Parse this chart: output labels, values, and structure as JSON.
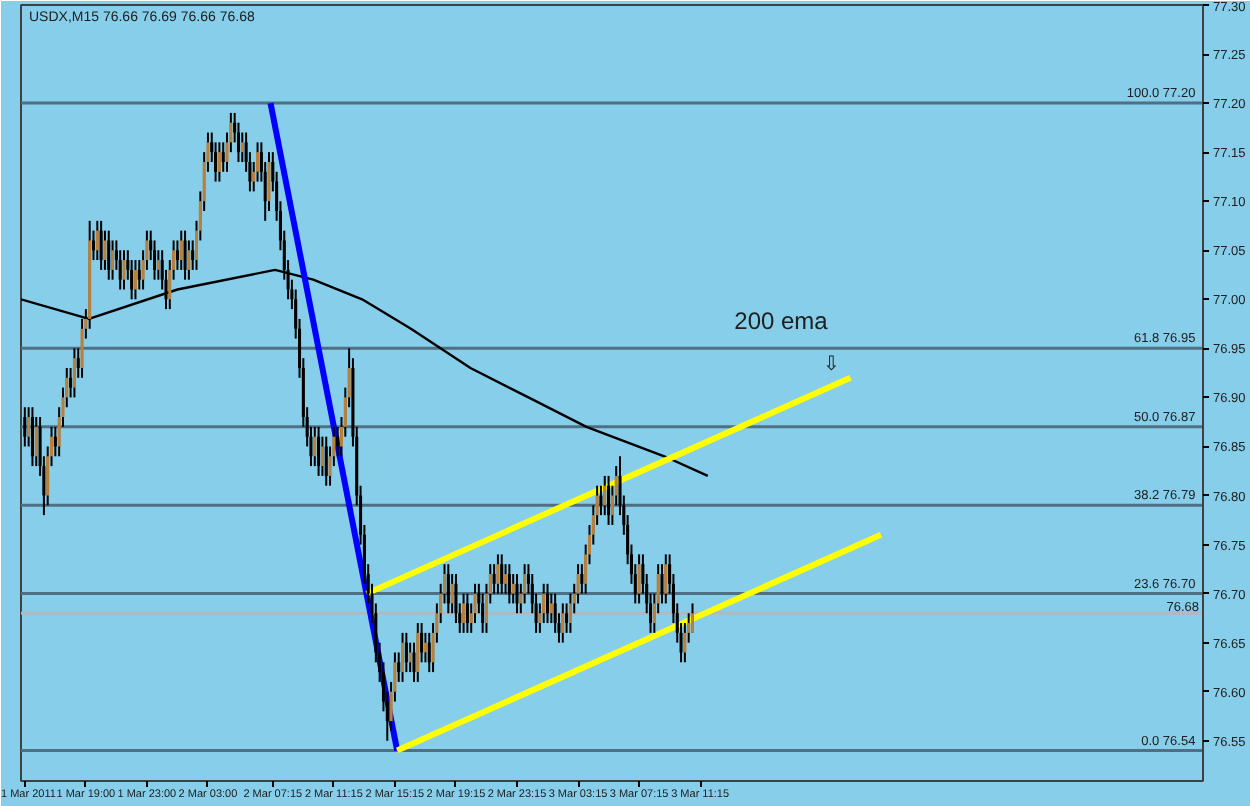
{
  "chart_data": {
    "type": "candlestick",
    "title": "USDX,M15 76.66 76.69 76.66 76.68",
    "x": [
      "2011-03-01T15:00",
      "2011-03-01T15:15",
      "2011-03-01T15:30",
      "2011-03-01T15:45",
      "2011-03-01T16:00",
      "2011-03-01T16:15",
      "2011-03-01T16:30",
      "2011-03-01T16:45",
      "2011-03-01T17:00",
      "2011-03-01T17:15",
      "2011-03-01T17:30",
      "2011-03-01T17:45",
      "2011-03-01T18:00",
      "2011-03-01T18:15",
      "2011-03-01T18:30",
      "2011-03-01T18:45",
      "2011-03-01T19:00",
      "2011-03-01T19:15",
      "2011-03-01T19:30",
      "2011-03-01T19:45",
      "2011-03-01T20:00",
      "2011-03-01T20:15",
      "2011-03-01T20:30",
      "2011-03-01T20:45",
      "2011-03-01T21:00",
      "2011-03-01T21:15",
      "2011-03-01T21:30",
      "2011-03-01T21:45",
      "2011-03-01T22:00",
      "2011-03-01T22:15",
      "2011-03-01T22:30",
      "2011-03-01T22:45",
      "2011-03-01T23:00",
      "2011-03-01T23:15",
      "2011-03-01T23:30",
      "2011-03-01T23:45",
      "2011-03-02T00:00",
      "2011-03-02T00:15",
      "2011-03-02T00:30",
      "2011-03-02T00:45",
      "2011-03-02T01:00",
      "2011-03-02T01:15",
      "2011-03-02T01:30",
      "2011-03-02T01:45",
      "2011-03-02T02:00",
      "2011-03-02T02:15",
      "2011-03-02T02:30",
      "2011-03-02T02:45",
      "2011-03-02T03:00",
      "2011-03-02T03:15",
      "2011-03-02T03:30",
      "2011-03-02T03:45",
      "2011-03-02T04:00",
      "2011-03-02T04:15",
      "2011-03-02T04:30",
      "2011-03-02T04:45",
      "2011-03-02T05:00",
      "2011-03-02T05:15",
      "2011-03-02T05:30",
      "2011-03-02T05:45",
      "2011-03-02T06:00",
      "2011-03-02T06:15",
      "2011-03-02T06:30",
      "2011-03-02T06:45",
      "2011-03-02T07:00",
      "2011-03-02T07:15",
      "2011-03-02T07:30",
      "2011-03-02T07:45",
      "2011-03-02T08:00",
      "2011-03-02T08:15",
      "2011-03-02T08:30",
      "2011-03-02T08:45",
      "2011-03-02T09:00",
      "2011-03-02T09:15",
      "2011-03-02T09:30",
      "2011-03-02T09:45",
      "2011-03-02T10:00",
      "2011-03-02T10:15",
      "2011-03-02T10:30",
      "2011-03-02T10:45",
      "2011-03-02T11:00",
      "2011-03-02T11:15",
      "2011-03-02T11:30",
      "2011-03-02T11:45",
      "2011-03-02T12:00",
      "2011-03-02T12:15",
      "2011-03-02T12:30",
      "2011-03-02T12:45",
      "2011-03-02T13:00",
      "2011-03-02T13:15",
      "2011-03-02T13:30",
      "2011-03-02T13:45",
      "2011-03-02T14:00",
      "2011-03-02T14:15",
      "2011-03-02T14:30",
      "2011-03-02T14:45",
      "2011-03-02T15:00",
      "2011-03-02T15:15",
      "2011-03-02T15:30",
      "2011-03-02T15:45",
      "2011-03-02T16:00",
      "2011-03-02T16:15",
      "2011-03-02T16:30",
      "2011-03-02T16:45",
      "2011-03-02T17:00",
      "2011-03-02T17:15",
      "2011-03-02T17:30",
      "2011-03-02T17:45",
      "2011-03-02T18:00",
      "2011-03-02T18:15",
      "2011-03-02T18:30",
      "2011-03-02T18:45",
      "2011-03-02T19:00",
      "2011-03-02T19:15",
      "2011-03-02T19:30",
      "2011-03-02T19:45",
      "2011-03-02T20:00",
      "2011-03-02T20:15",
      "2011-03-02T20:30",
      "2011-03-02T20:45",
      "2011-03-02T21:00",
      "2011-03-02T21:15",
      "2011-03-02T21:30",
      "2011-03-02T21:45",
      "2011-03-02T22:00",
      "2011-03-02T22:15",
      "2011-03-02T22:30",
      "2011-03-02T22:45",
      "2011-03-02T23:00",
      "2011-03-02T23:15",
      "2011-03-02T23:30",
      "2011-03-02T23:45",
      "2011-03-03T00:00",
      "2011-03-03T00:15",
      "2011-03-03T00:30",
      "2011-03-03T00:45",
      "2011-03-03T01:00",
      "2011-03-03T01:15",
      "2011-03-03T01:30",
      "2011-03-03T01:45",
      "2011-03-03T02:00",
      "2011-03-03T02:15",
      "2011-03-03T02:30",
      "2011-03-03T02:45",
      "2011-03-03T03:00",
      "2011-03-03T03:15",
      "2011-03-03T03:30",
      "2011-03-03T03:45",
      "2011-03-03T04:00",
      "2011-03-03T04:15",
      "2011-03-03T04:30",
      "2011-03-03T04:45",
      "2011-03-03T05:00",
      "2011-03-03T05:15",
      "2011-03-03T05:30",
      "2011-03-03T05:45",
      "2011-03-03T06:00",
      "2011-03-03T06:15",
      "2011-03-03T06:30",
      "2011-03-03T06:45",
      "2011-03-03T07:00",
      "2011-03-03T07:15",
      "2011-03-03T07:30",
      "2011-03-03T07:45",
      "2011-03-03T08:00",
      "2011-03-03T08:15",
      "2011-03-03T08:30",
      "2011-03-03T08:45",
      "2011-03-03T09:00",
      "2011-03-03T09:15",
      "2011-03-03T09:30",
      "2011-03-03T09:45",
      "2011-03-03T10:00",
      "2011-03-03T10:15",
      "2011-03-03T10:30",
      "2011-03-03T10:45"
    ],
    "ohlc": [
      [
        76.88,
        76.89,
        76.85,
        76.86
      ],
      [
        76.86,
        76.89,
        76.85,
        76.88
      ],
      [
        76.88,
        76.89,
        76.83,
        76.84
      ],
      [
        76.84,
        76.88,
        76.83,
        76.87
      ],
      [
        76.87,
        76.88,
        76.82,
        76.83
      ],
      [
        76.83,
        76.84,
        76.78,
        76.8
      ],
      [
        76.8,
        76.85,
        76.79,
        76.84
      ],
      [
        76.84,
        76.87,
        76.83,
        76.86
      ],
      [
        76.86,
        76.87,
        76.84,
        76.85
      ],
      [
        76.85,
        76.89,
        76.84,
        76.88
      ],
      [
        76.88,
        76.91,
        76.87,
        76.9
      ],
      [
        76.9,
        76.93,
        76.89,
        76.92
      ],
      [
        76.92,
        76.93,
        76.9,
        76.91
      ],
      [
        76.91,
        76.95,
        76.9,
        76.94
      ],
      [
        76.94,
        76.95,
        76.92,
        76.93
      ],
      [
        76.93,
        76.98,
        76.92,
        76.97
      ],
      [
        76.97,
        76.99,
        76.96,
        76.98
      ],
      [
        76.98,
        77.08,
        76.97,
        77.06
      ],
      [
        77.06,
        77.07,
        77.04,
        77.05
      ],
      [
        77.05,
        77.08,
        77.04,
        77.07
      ],
      [
        77.07,
        77.08,
        77.03,
        77.04
      ],
      [
        77.04,
        77.07,
        77.03,
        77.06
      ],
      [
        77.06,
        77.07,
        77.02,
        77.03
      ],
      [
        77.03,
        77.06,
        77.02,
        77.05
      ],
      [
        77.05,
        77.06,
        77.03,
        77.04
      ],
      [
        77.04,
        77.05,
        77.01,
        77.02
      ],
      [
        77.02,
        77.05,
        77.01,
        77.04
      ],
      [
        77.04,
        77.05,
        77.02,
        77.03
      ],
      [
        77.03,
        77.04,
        77.0,
        77.01
      ],
      [
        77.01,
        77.04,
        77.0,
        77.03
      ],
      [
        77.03,
        77.04,
        77.01,
        77.02
      ],
      [
        77.02,
        77.05,
        77.01,
        77.04
      ],
      [
        77.04,
        77.07,
        77.03,
        77.06
      ],
      [
        77.06,
        77.07,
        77.04,
        77.05
      ],
      [
        77.05,
        77.06,
        77.02,
        77.03
      ],
      [
        77.03,
        77.05,
        77.02,
        77.04
      ],
      [
        77.04,
        77.05,
        77.01,
        77.02
      ],
      [
        77.02,
        77.03,
        76.99,
        77.0
      ],
      [
        77.0,
        77.04,
        76.99,
        77.03
      ],
      [
        77.03,
        77.06,
        77.02,
        77.05
      ],
      [
        77.05,
        77.06,
        77.03,
        77.04
      ],
      [
        77.04,
        77.07,
        77.03,
        77.06
      ],
      [
        77.06,
        77.07,
        77.02,
        77.03
      ],
      [
        77.03,
        77.06,
        77.02,
        77.05
      ],
      [
        77.05,
        77.06,
        77.03,
        77.04
      ],
      [
        77.04,
        77.08,
        77.03,
        77.07
      ],
      [
        77.07,
        77.11,
        77.06,
        77.1
      ],
      [
        77.1,
        77.15,
        77.09,
        77.14
      ],
      [
        77.14,
        77.17,
        77.13,
        77.16
      ],
      [
        77.16,
        77.17,
        77.14,
        77.15
      ],
      [
        77.15,
        77.16,
        77.12,
        77.13
      ],
      [
        77.13,
        77.16,
        77.12,
        77.15
      ],
      [
        77.15,
        77.16,
        77.13,
        77.14
      ],
      [
        77.14,
        77.17,
        77.13,
        77.16
      ],
      [
        77.16,
        77.19,
        77.15,
        77.18
      ],
      [
        77.18,
        77.19,
        77.16,
        77.17
      ],
      [
        77.17,
        77.18,
        77.14,
        77.15
      ],
      [
        77.15,
        77.17,
        77.14,
        77.16
      ],
      [
        77.16,
        77.17,
        77.13,
        77.14
      ],
      [
        77.14,
        77.15,
        77.11,
        77.12
      ],
      [
        77.12,
        77.14,
        77.11,
        77.13
      ],
      [
        77.13,
        77.16,
        77.12,
        77.15
      ],
      [
        77.15,
        77.16,
        77.12,
        77.13
      ],
      [
        77.13,
        77.14,
        77.08,
        77.1
      ],
      [
        77.1,
        77.15,
        77.09,
        77.14
      ],
      [
        77.14,
        77.15,
        77.11,
        77.12
      ],
      [
        77.12,
        77.13,
        77.08,
        77.09
      ],
      [
        77.09,
        77.1,
        77.05,
        77.06
      ],
      [
        77.06,
        77.07,
        77.02,
        77.03
      ],
      [
        77.03,
        77.04,
        77.0,
        77.01
      ],
      [
        77.01,
        77.02,
        76.99,
        77.0
      ],
      [
        77.0,
        77.01,
        76.96,
        76.97
      ],
      [
        76.97,
        76.98,
        76.92,
        76.93
      ],
      [
        76.93,
        76.94,
        76.87,
        76.88
      ],
      [
        76.88,
        76.89,
        76.85,
        76.86
      ],
      [
        76.86,
        76.87,
        76.83,
        76.84
      ],
      [
        76.84,
        76.87,
        76.83,
        76.86
      ],
      [
        76.86,
        76.87,
        76.82,
        76.83
      ],
      [
        76.83,
        76.86,
        76.82,
        76.85
      ],
      [
        76.85,
        76.86,
        76.81,
        76.82
      ],
      [
        76.82,
        76.85,
        76.81,
        76.84
      ],
      [
        76.84,
        76.87,
        76.83,
        76.86
      ],
      [
        76.86,
        76.87,
        76.84,
        76.85
      ],
      [
        76.85,
        76.88,
        76.84,
        76.87
      ],
      [
        76.87,
        76.91,
        76.86,
        76.9
      ],
      [
        76.9,
        76.95,
        76.89,
        76.93
      ],
      [
        76.93,
        76.94,
        76.85,
        76.86
      ],
      [
        76.86,
        76.87,
        76.79,
        76.8
      ],
      [
        76.8,
        76.81,
        76.75,
        76.76
      ],
      [
        76.76,
        76.77,
        76.71,
        76.72
      ],
      [
        76.72,
        76.73,
        76.69,
        76.7
      ],
      [
        76.7,
        76.71,
        76.67,
        76.68
      ],
      [
        76.68,
        76.69,
        76.63,
        76.64
      ],
      [
        76.64,
        76.65,
        76.61,
        76.62
      ],
      [
        76.62,
        76.63,
        76.58,
        76.59
      ],
      [
        76.59,
        76.6,
        76.55,
        76.57
      ],
      [
        76.57,
        76.61,
        76.56,
        76.6
      ],
      [
        76.6,
        76.64,
        76.59,
        76.63
      ],
      [
        76.63,
        76.64,
        76.61,
        76.62
      ],
      [
        76.62,
        76.66,
        76.61,
        76.65
      ],
      [
        76.65,
        76.66,
        76.62,
        76.63
      ],
      [
        76.63,
        76.65,
        76.62,
        76.64
      ],
      [
        76.64,
        76.65,
        76.61,
        76.62
      ],
      [
        76.62,
        76.67,
        76.61,
        76.66
      ],
      [
        76.66,
        76.67,
        76.63,
        76.64
      ],
      [
        76.64,
        76.66,
        76.63,
        76.65
      ],
      [
        76.65,
        76.66,
        76.62,
        76.63
      ],
      [
        76.63,
        76.67,
        76.62,
        76.66
      ],
      [
        76.66,
        76.69,
        76.65,
        76.68
      ],
      [
        76.68,
        76.71,
        76.67,
        76.7
      ],
      [
        76.7,
        76.73,
        76.69,
        76.72
      ],
      [
        76.72,
        76.73,
        76.68,
        76.69
      ],
      [
        76.69,
        76.72,
        76.68,
        76.71
      ],
      [
        76.71,
        76.72,
        76.67,
        76.68
      ],
      [
        76.68,
        76.69,
        76.66,
        76.67
      ],
      [
        76.67,
        76.7,
        76.66,
        76.69
      ],
      [
        76.69,
        76.7,
        76.66,
        76.67
      ],
      [
        76.67,
        76.69,
        76.66,
        76.68
      ],
      [
        76.68,
        76.71,
        76.67,
        76.7
      ],
      [
        76.7,
        76.71,
        76.68,
        76.69
      ],
      [
        76.69,
        76.7,
        76.66,
        76.67
      ],
      [
        76.67,
        76.71,
        76.66,
        76.7
      ],
      [
        76.7,
        76.73,
        76.69,
        76.72
      ],
      [
        76.72,
        76.73,
        76.7,
        76.71
      ],
      [
        76.71,
        76.74,
        76.7,
        76.73
      ],
      [
        76.73,
        76.74,
        76.7,
        76.71
      ],
      [
        76.71,
        76.73,
        76.7,
        76.72
      ],
      [
        76.72,
        76.73,
        76.69,
        76.7
      ],
      [
        76.7,
        76.72,
        76.69,
        76.71
      ],
      [
        76.71,
        76.72,
        76.68,
        76.69
      ],
      [
        76.69,
        76.71,
        76.68,
        76.7
      ],
      [
        76.7,
        76.73,
        76.69,
        76.72
      ],
      [
        76.72,
        76.73,
        76.7,
        76.71
      ],
      [
        76.71,
        76.72,
        76.68,
        76.69
      ],
      [
        76.69,
        76.7,
        76.66,
        76.67
      ],
      [
        76.67,
        76.69,
        76.66,
        76.68
      ],
      [
        76.68,
        76.71,
        76.67,
        76.7
      ],
      [
        76.7,
        76.71,
        76.67,
        76.68
      ],
      [
        76.68,
        76.7,
        76.67,
        76.69
      ],
      [
        76.69,
        76.7,
        76.66,
        76.67
      ],
      [
        76.67,
        76.68,
        76.65,
        76.66
      ],
      [
        76.66,
        76.69,
        76.65,
        76.68
      ],
      [
        76.68,
        76.69,
        76.66,
        76.67
      ],
      [
        76.67,
        76.7,
        76.66,
        76.69
      ],
      [
        76.69,
        76.71,
        76.68,
        76.7
      ],
      [
        76.7,
        76.73,
        76.69,
        76.72
      ],
      [
        76.72,
        76.73,
        76.7,
        76.71
      ],
      [
        76.71,
        76.75,
        76.7,
        76.74
      ],
      [
        76.74,
        76.77,
        76.73,
        76.76
      ],
      [
        76.76,
        76.79,
        76.75,
        76.78
      ],
      [
        76.78,
        76.81,
        76.77,
        76.8
      ],
      [
        76.8,
        76.81,
        76.78,
        76.79
      ],
      [
        76.79,
        76.82,
        76.78,
        76.81
      ],
      [
        76.81,
        76.82,
        76.77,
        76.78
      ],
      [
        76.78,
        76.81,
        76.77,
        76.8
      ],
      [
        76.8,
        76.83,
        76.79,
        76.82
      ],
      [
        76.82,
        76.84,
        76.78,
        76.79
      ],
      [
        76.79,
        76.8,
        76.76,
        76.77
      ],
      [
        76.77,
        76.78,
        76.73,
        76.74
      ],
      [
        76.74,
        76.75,
        76.71,
        76.72
      ],
      [
        76.72,
        76.73,
        76.69,
        76.7
      ],
      [
        76.7,
        76.74,
        76.69,
        76.73
      ],
      [
        76.73,
        76.74,
        76.7,
        76.71
      ],
      [
        76.71,
        76.72,
        76.68,
        76.69
      ],
      [
        76.69,
        76.7,
        76.66,
        76.67
      ],
      [
        76.67,
        76.7,
        76.66,
        76.69
      ],
      [
        76.69,
        76.73,
        76.68,
        76.72
      ],
      [
        76.72,
        76.73,
        76.69,
        76.7
      ],
      [
        76.7,
        76.74,
        76.69,
        76.73
      ],
      [
        76.73,
        76.74,
        76.7,
        76.71
      ],
      [
        76.71,
        76.72,
        76.67,
        76.68
      ],
      [
        76.68,
        76.69,
        76.65,
        76.66
      ],
      [
        76.66,
        76.67,
        76.63,
        76.64
      ],
      [
        76.64,
        76.67,
        76.63,
        76.66
      ],
      [
        76.66,
        76.68,
        76.65,
        76.67
      ],
      [
        76.66,
        76.69,
        76.66,
        76.68
      ]
    ],
    "series": [
      {
        "type": "line",
        "color": "#000000",
        "x": [
          "2011-03-01T14:45",
          "2011-03-01T19:12",
          "2011-03-02T01:00",
          "2011-03-02T07:24",
          "2011-03-02T09:54",
          "2011-03-02T13:06",
          "2011-03-02T16:18",
          "2011-03-02T20:12",
          "2011-03-03T00:00",
          "2011-03-03T03:48",
          "2011-03-03T08:54",
          "2011-03-03T11:45"
        ],
        "values": [
          77.0,
          76.98,
          77.01,
          77.03,
          77.02,
          77.0,
          76.97,
          76.93,
          76.9,
          76.87,
          76.84,
          76.82
        ]
      },
      {
        "type": "line",
        "color": "#0000ff",
        "x": [
          "2011-03-02T07:06",
          "2011-03-02T15:24"
        ],
        "values": [
          77.2,
          76.54
        ]
      },
      {
        "type": "line",
        "color": "#ffff00",
        "x": [
          "2011-03-02T13:24",
          "2011-03-03T21:06"
        ],
        "values": [
          76.7,
          76.92
        ]
      },
      {
        "type": "line",
        "color": "#ffff00",
        "x": [
          "2011-03-02T15:24",
          "2011-03-03T23:06"
        ],
        "values": [
          76.54,
          76.76
        ]
      }
    ],
    "xlim": [
      "2011-03-01T14:45",
      "2011-03-04T20:12"
    ],
    "ylim": [
      76.509,
      77.3
    ],
    "xticks": [
      {
        "value": "2011-03-01T15:00",
        "label": "1 Mar 2011"
      },
      {
        "value": "2011-03-01T19:00",
        "label": "1 Mar 19:00"
      },
      {
        "value": "2011-03-01T23:00",
        "label": "1 Mar 23:00"
      },
      {
        "value": "2011-03-02T03:00",
        "label": "2 Mar 03:00"
      },
      {
        "value": "2011-03-02T07:15",
        "label": "2 Mar 07:15"
      },
      {
        "value": "2011-03-02T11:15",
        "label": "2 Mar 11:15"
      },
      {
        "value": "2011-03-02T15:15",
        "label": "2 Mar 15:15"
      },
      {
        "value": "2011-03-02T19:15",
        "label": "2 Mar 19:15"
      },
      {
        "value": "2011-03-02T23:15",
        "label": "2 Mar 23:15"
      },
      {
        "value": "2011-03-03T03:15",
        "label": "3 Mar 03:15"
      },
      {
        "value": "2011-03-03T07:15",
        "label": "3 Mar 07:15"
      },
      {
        "value": "2011-03-03T11:15",
        "label": "3 Mar 11:15"
      }
    ],
    "yticks": [
      76.55,
      {
        "value": 76.6,
        "label": "76.60"
      },
      76.65,
      {
        "value": 76.7,
        "label": "76.70"
      },
      76.75,
      {
        "value": 76.8,
        "label": "76.80"
      },
      76.85,
      {
        "value": 76.9,
        "label": "76.90"
      },
      76.95,
      {
        "value": 77.0,
        "label": "77.00"
      },
      77.05,
      {
        "value": 77.1,
        "label": "77.10"
      },
      77.15,
      {
        "value": 77.2,
        "label": "77.20"
      },
      77.25,
      {
        "value": 77.3,
        "label": "77.30"
      }
    ],
    "ref_lines": [
      {
        "axis": "y",
        "value": 77.2,
        "label": "100.0  77.20",
        "color": "#4f6f85"
      },
      {
        "axis": "y",
        "value": 76.95,
        "label": "61.8  76.95",
        "color": "#4f6f85"
      },
      {
        "axis": "y",
        "value": 76.87,
        "label": "50.0  76.87",
        "color": "#4f6f85"
      },
      {
        "axis": "y",
        "value": 76.79,
        "label": "38.2  76.79",
        "color": "#4f6f85"
      },
      {
        "axis": "y",
        "value": 76.7,
        "label": "23.6  76.70",
        "color": "#4f6f85"
      },
      {
        "axis": "y",
        "value": 76.54,
        "label": "0.0  76.54",
        "color": "#4f6f85"
      },
      {
        "axis": "y",
        "value": 76.68,
        "label": "76.68",
        "color": "#b0b8c0"
      }
    ],
    "annotations": [
      "200 ema",
      "⇩"
    ],
    "grid": false
  }
}
